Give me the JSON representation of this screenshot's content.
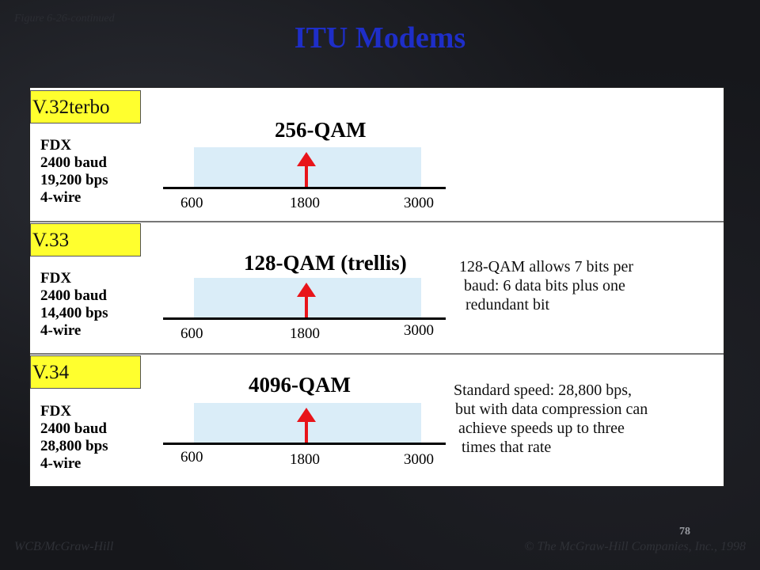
{
  "figure_caption": "Figure 6-26-continued",
  "title": "ITU Modems",
  "modems": [
    {
      "name": "V.32terbo",
      "specs": [
        "FDX",
        "2400 baud",
        "19,200 bps",
        "4-wire"
      ],
      "modulation": "256-QAM",
      "ticks": [
        "600",
        "1800",
        "3000"
      ],
      "note": []
    },
    {
      "name": "V.33",
      "specs": [
        "FDX",
        "2400 baud",
        "14,400 bps",
        "4-wire"
      ],
      "modulation": "128-QAM (trellis)",
      "ticks": [
        "600",
        "1800",
        "3000"
      ],
      "note": [
        "128-QAM allows 7 bits per",
        "baud: 6 data bits plus one",
        "redundant bit"
      ]
    },
    {
      "name": "V.34",
      "specs": [
        "FDX",
        "2400 baud",
        "28,800 bps",
        "4-wire"
      ],
      "modulation": "4096-QAM",
      "ticks": [
        "600",
        "1800",
        "3000"
      ],
      "note": [
        "Standard speed: 28,800 bps,",
        "but with data compression can",
        "achieve speeds up to three",
        "times that rate"
      ]
    }
  ],
  "colors": {
    "title": "#1e2ec8",
    "label_bg": "#ffff2e",
    "band": "#daedf8",
    "arrow": "#e8141a"
  },
  "page_number": "78",
  "footer_left": "WCB/McGraw-Hill",
  "footer_right": "© The McGraw-Hill Companies, Inc., 1998"
}
